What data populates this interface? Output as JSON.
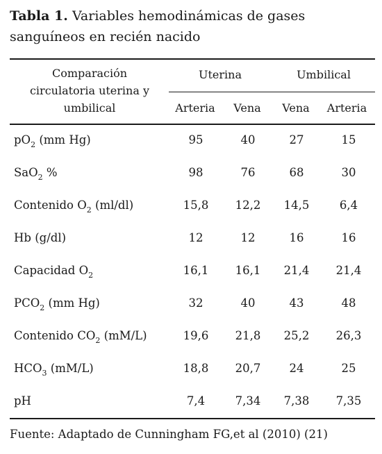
{
  "caption": {
    "label": "Tabla 1.",
    "text": "Variables hemodinámicas de gases sanguíneos en recién nacido"
  },
  "header": {
    "comparison_lines": [
      "Comparación",
      "circulatoria uterina y",
      "umbilical"
    ],
    "groups": [
      "Uterina",
      "Umbilical"
    ],
    "subcolumns": [
      "Arteria",
      "Vena",
      "Vena",
      "Arteria"
    ]
  },
  "rows": [
    {
      "name": "pO",
      "sub": "2",
      "suffix": " (mm Hg)",
      "values": [
        "95",
        "40",
        "27",
        "15"
      ]
    },
    {
      "name": "SaO",
      "sub": "2",
      "suffix": " %",
      "values": [
        "98",
        "76",
        "68",
        "30"
      ]
    },
    {
      "name": "Contenido O",
      "sub": "2",
      "suffix": " (ml/dl)",
      "values": [
        "15,8",
        "12,2",
        "14,5",
        "6,4"
      ]
    },
    {
      "name": "Hb (g/dl)",
      "sub": "",
      "suffix": "",
      "values": [
        "12",
        "12",
        "16",
        "16"
      ]
    },
    {
      "name": "Capacidad O",
      "sub": "2",
      "suffix": "",
      "values": [
        "16,1",
        "16,1",
        "21,4",
        "21,4"
      ]
    },
    {
      "name": "PCO",
      "sub": "2",
      "suffix": " (mm Hg)",
      "values": [
        "32",
        "40",
        "43",
        "48"
      ]
    },
    {
      "name": "Contenido CO",
      "sub": "2",
      "suffix": " (mM/L)",
      "values": [
        "19,6",
        "21,8",
        "25,2",
        "26,3"
      ]
    },
    {
      "name": "HCO",
      "sub": "3",
      "suffix": " (mM/L)",
      "values": [
        "18,8",
        "20,7",
        "24",
        "25"
      ]
    },
    {
      "name": "pH",
      "sub": "",
      "suffix": "",
      "values": [
        "7,4",
        "7,34",
        "7,38",
        "7,35"
      ]
    }
  ],
  "footer": "Fuente: Adaptado de Cunningham FG,et al (2010) (21)"
}
